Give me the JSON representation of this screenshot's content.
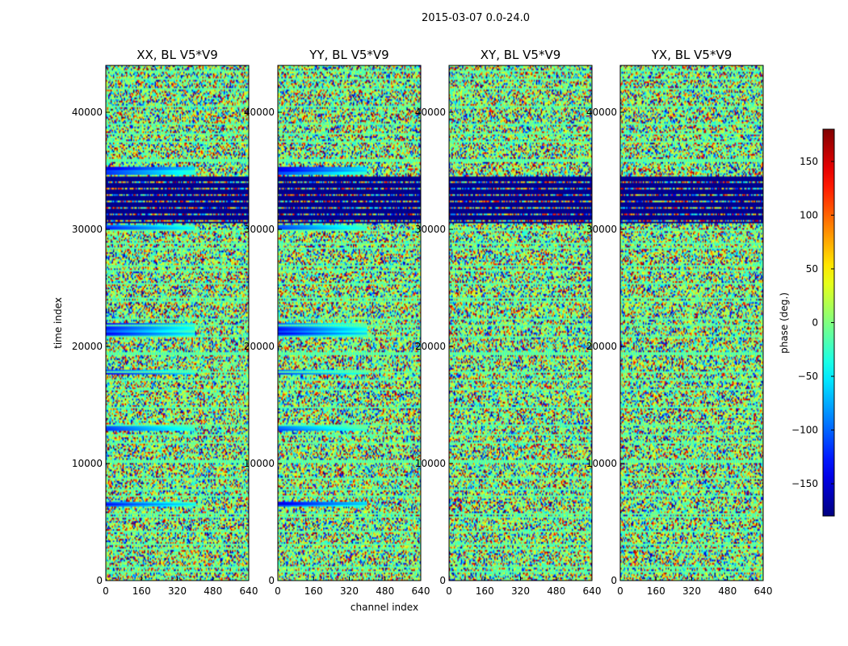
{
  "figure": {
    "suptitle": "2015-03-07 0.0-24.0",
    "xlabel": "channel index",
    "ylabel": "time index",
    "colorbar_label": "phase (deg.)"
  },
  "chart_data": {
    "type": "heatmap",
    "title": "2015-03-07 0.0-24.0",
    "xlabel": "channel index",
    "ylabel": "time index",
    "xlim": [
      0,
      640
    ],
    "ylim": [
      0,
      44000
    ],
    "x_ticks": [
      0,
      160,
      320,
      480,
      640
    ],
    "y_ticks": [
      0,
      10000,
      20000,
      30000,
      40000
    ],
    "panels": [
      {
        "title": "XX, BL V5*V9"
      },
      {
        "title": "YY, BL V5*V9"
      },
      {
        "title": "XY, BL V5*V9"
      },
      {
        "title": "YX, BL V5*V9"
      }
    ],
    "colorbar": {
      "label": "phase (deg.)",
      "range": [
        -180,
        180
      ],
      "ticks": [
        -150,
        -100,
        -50,
        0,
        50,
        100,
        150
      ],
      "colormap": "jet"
    }
  }
}
